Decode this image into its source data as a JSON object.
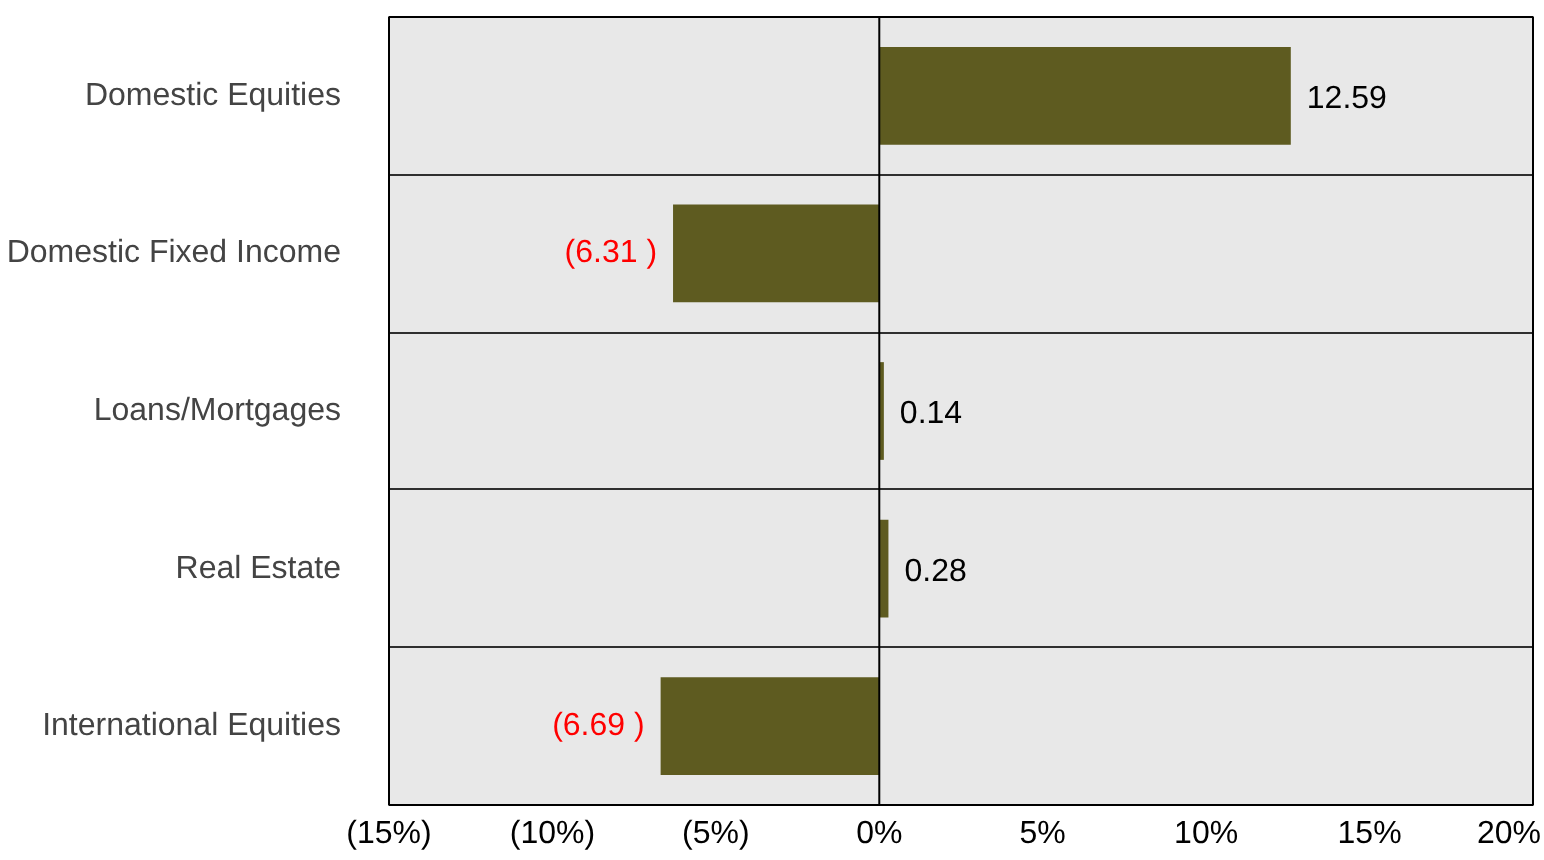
{
  "chart_data": {
    "type": "bar",
    "orientation": "horizontal",
    "categories": [
      "Domestic Equities",
      "Domestic Fixed Income",
      "Loans/Mortgages",
      "Real Estate",
      "International Equities"
    ],
    "values": [
      12.59,
      -6.31,
      0.14,
      0.28,
      -6.69
    ],
    "value_labels": [
      "12.59",
      "(6.31 )",
      "0.14",
      "0.28",
      "(6.69 )"
    ],
    "color": "#5e5b20",
    "xlim": [
      -15,
      20
    ],
    "xticks": [
      {
        "value": -15,
        "label": "(15%)"
      },
      {
        "value": -10,
        "label": "(10%)"
      },
      {
        "value": -5,
        "label": "(5%)"
      },
      {
        "value": 0,
        "label": "0%"
      },
      {
        "value": 5,
        "label": "5%"
      },
      {
        "value": 10,
        "label": "10%"
      },
      {
        "value": 15,
        "label": "15%"
      },
      {
        "value": 20,
        "label": "20%"
      }
    ]
  }
}
